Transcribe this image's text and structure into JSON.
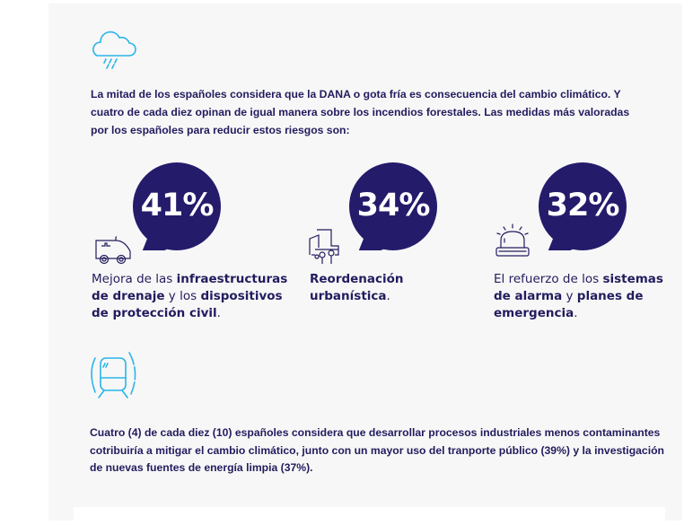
{
  "intro": "La mitad de los españoles considera que la DANA o gota fría es consecuencia del cambio climático. Y cuatro de cada diez opinan de igual manera sobre los incendios forestales. Las medidas más valoradas por los españoles para reducir estos riesgos son:",
  "stats": [
    {
      "value": "41%",
      "icon": "ambulance-icon",
      "parts": [
        "Mejora de las ",
        "infraestructuras de drenaje",
        " y los ",
        "dispositivos de protección civil",
        "."
      ]
    },
    {
      "value": "34%",
      "icon": "urban-planning-icon",
      "parts": [
        "Reordenación urbanística",
        "."
      ]
    },
    {
      "value": "32%",
      "icon": "alarm-light-icon",
      "parts": [
        "El refuerzo de los ",
        "sistemas de alarma",
        " y ",
        "planes de emergencia",
        "."
      ]
    }
  ],
  "outro": "Cuatro (4) de cada diez (10) españoles considera que desarrollar procesos industriales menos contaminantes cotribuiría a mitigar el cambio climático, junto con un mayor uso del tranporte público (39%) y la investigación de nuevas fuentes de energía limpia (37%).",
  "colors": {
    "navy": "#241b6b",
    "text": "#221c5e",
    "cyan": "#29b5e8"
  }
}
